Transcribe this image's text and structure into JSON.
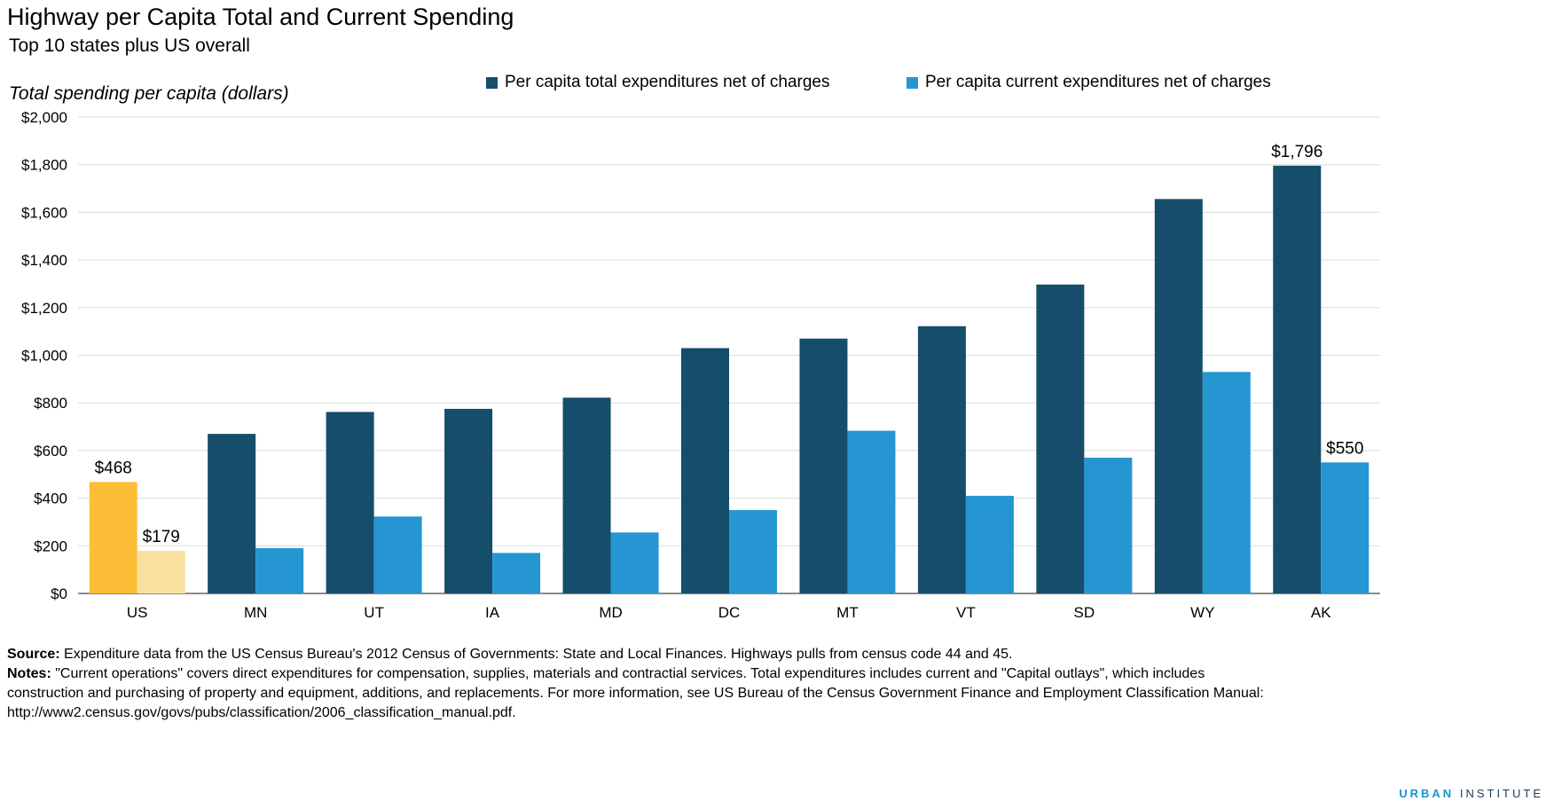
{
  "header": {
    "title": "Highway per Capita Total and Current Spending",
    "subtitle": "Top 10 states plus US overall",
    "axis_title": "Total spending per capita (dollars)"
  },
  "legend": {
    "total_label": "Per capita total expenditures net of charges",
    "current_label": "Per capita current expenditures net of charges"
  },
  "colors": {
    "total": "#154d6b",
    "current": "#2596d1",
    "us_total": "#fcbe37",
    "us_current": "#fbe1a0",
    "grid": "#dcdcdc"
  },
  "chart_data": {
    "type": "bar",
    "categories": [
      "US",
      "MN",
      "UT",
      "IA",
      "MD",
      "DC",
      "MT",
      "VT",
      "SD",
      "WY",
      "AK"
    ],
    "series": [
      {
        "name": "Per capita total expenditures net of charges",
        "values": [
          468,
          670,
          762,
          775,
          822,
          1030,
          1070,
          1122,
          1297,
          1656,
          1796
        ]
      },
      {
        "name": "Per capita current expenditures net of charges",
        "values": [
          179,
          190,
          323,
          170,
          256,
          350,
          683,
          410,
          570,
          930,
          550
        ]
      }
    ],
    "data_labels": [
      {
        "series": 0,
        "index": 0,
        "text": "$468"
      },
      {
        "series": 1,
        "index": 0,
        "text": "$179"
      },
      {
        "series": 0,
        "index": 10,
        "text": "$1,796"
      },
      {
        "series": 1,
        "index": 10,
        "text": "$550"
      }
    ],
    "yticks": [
      0,
      200,
      400,
      600,
      800,
      1000,
      1200,
      1400,
      1600,
      1800,
      2000
    ],
    "ytick_labels": [
      "$0",
      "$200",
      "$400",
      "$600",
      "$800",
      "$1,000",
      "$1,200",
      "$1,400",
      "$1,600",
      "$1,800",
      "$2,000"
    ],
    "ylabel": "Total spending per capita (dollars)",
    "ylim": [
      0,
      2000
    ],
    "grid": true,
    "legend_position": "top"
  },
  "footer": {
    "source_label": "Source:",
    "source_text": " Expenditure data from the US Census Bureau's 2012 Census of Governments: State and Local Finances. Highways pulls from census code 44 and 45.",
    "notes_label": "Notes:",
    "notes_line1": " \"Current operations\" covers direct expenditures for compensation, supplies, materials and contractial services. Total expenditures includes current and \"Capital outlays\", which includes",
    "notes_line2": "construction and purchasing of property and equipment, additions, and replacements. For more information, see US Bureau of the Census Government Finance and Employment Classification Manual:",
    "notes_line3": "http://www2.census.gov/govs/pubs/classification/2006_classification_manual.pdf.",
    "brand_urban": "URBAN",
    "brand_institute": "INSTITUTE"
  }
}
